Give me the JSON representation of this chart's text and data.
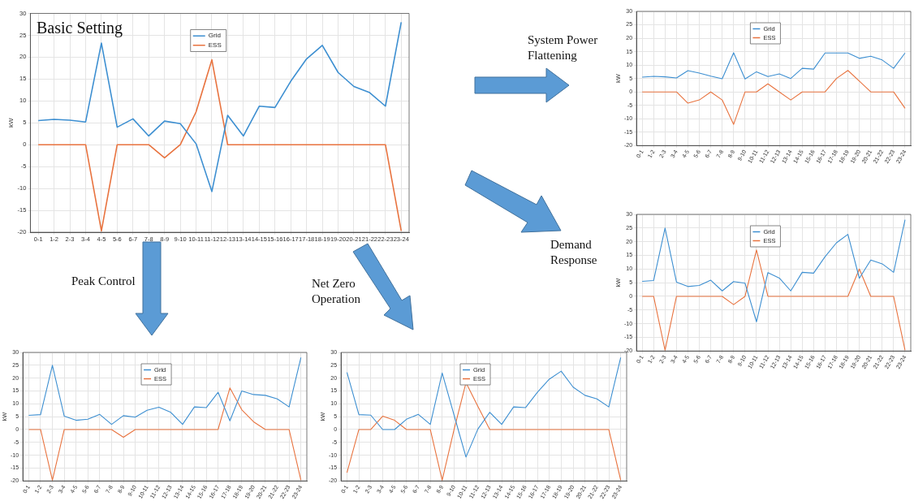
{
  "chart_data": [
    {
      "type": "line",
      "title": "Basic Setting",
      "ylabel": "kW",
      "categories": [
        "0-1",
        "1-2",
        "2-3",
        "3-4",
        "4-5",
        "5-6",
        "6-7",
        "7-8",
        "8-9",
        "9-10",
        "10-11",
        "11-12",
        "12-13",
        "13-14",
        "14-15",
        "15-16",
        "16-17",
        "17-18",
        "18-19",
        "19-20",
        "20-21",
        "21-22",
        "22-23",
        "23-24"
      ],
      "ylim": [
        -20,
        30
      ],
      "yticks": [
        -20,
        -15,
        -10,
        -5,
        0,
        5,
        10,
        15,
        20,
        25,
        30
      ],
      "grid": true,
      "legend": "top",
      "marker": "none",
      "series": [
        {
          "name": "Grid",
          "color": "#3d8fd1",
          "values": [
            5.5,
            5.8,
            5.6,
            5.2,
            23.2,
            4,
            5.9,
            2,
            5.4,
            4.8,
            0.2,
            -10.7,
            6.7,
            2,
            8.8,
            8.5,
            14.5,
            19.6,
            22.7,
            16.5,
            13.3,
            11.9,
            8.8,
            28
          ]
        },
        {
          "name": "ESS",
          "color": "#e8733f",
          "values": [
            0,
            0,
            0,
            0,
            -19.7,
            0,
            0,
            0,
            -3,
            0,
            7.5,
            19.4,
            0,
            0,
            0,
            0,
            0,
            0,
            0,
            0,
            0,
            0,
            0,
            -19.7
          ]
        }
      ]
    },
    {
      "type": "line",
      "title": "System Power Flattening",
      "ylabel": "kW",
      "categories": [
        "0-1",
        "1-2",
        "2-3",
        "3-4",
        "4-5",
        "5-6",
        "6-7",
        "7-8",
        "8-9",
        "9-10",
        "10-11",
        "11-12",
        "12-13",
        "13-14",
        "14-15",
        "15-16",
        "16-17",
        "17-18",
        "18-19",
        "19-20",
        "20-21",
        "21-22",
        "22-23",
        "23-24"
      ],
      "ylim": [
        -20,
        30
      ],
      "yticks": [
        -20,
        -15,
        -10,
        -5,
        0,
        5,
        10,
        15,
        20,
        25,
        30
      ],
      "grid": true,
      "legend": "top",
      "marker": "none",
      "series": [
        {
          "name": "Grid",
          "color": "#3d8fd1",
          "values": [
            5.5,
            5.8,
            5.6,
            5.2,
            7.9,
            7,
            5.9,
            4.9,
            14.6,
            4.8,
            7.5,
            5.7,
            6.7,
            5,
            8.8,
            8.5,
            14.5,
            14.5,
            14.5,
            12.5,
            13.3,
            11.9,
            8.8,
            14.5
          ]
        },
        {
          "name": "ESS",
          "color": "#e8733f",
          "values": [
            0,
            0,
            0,
            0,
            -4.2,
            -3,
            0,
            -3,
            -12.1,
            0,
            0,
            3,
            0,
            -3,
            0,
            0,
            0,
            5,
            8,
            4,
            0,
            0,
            0,
            -6.1
          ]
        }
      ]
    },
    {
      "type": "line",
      "title": "Demand Response",
      "ylabel": "kW",
      "categories": [
        "0-1",
        "1-2",
        "2-3",
        "3-4",
        "4-5",
        "5-6",
        "6-7",
        "7-8",
        "8-9",
        "9-10",
        "10-11",
        "11-12",
        "12-13",
        "13-14",
        "14-15",
        "15-16",
        "16-17",
        "17-18",
        "18-19",
        "19-20",
        "20-21",
        "21-22",
        "22-23",
        "23-24"
      ],
      "ylim": [
        -20,
        30
      ],
      "yticks": [
        -20,
        -15,
        -10,
        -5,
        0,
        5,
        10,
        15,
        20,
        25,
        30
      ],
      "grid": true,
      "legend": "top",
      "marker": "none",
      "series": [
        {
          "name": "Grid",
          "color": "#3d8fd1",
          "values": [
            5.5,
            5.8,
            25,
            5.2,
            3.6,
            4,
            5.9,
            2,
            5.4,
            4.8,
            -9.3,
            8.7,
            6.7,
            2,
            8.8,
            8.5,
            14.5,
            19.6,
            22.7,
            6.6,
            13.3,
            11.9,
            8.8,
            28
          ]
        },
        {
          "name": "ESS",
          "color": "#e8733f",
          "values": [
            0,
            0,
            -19.7,
            0,
            0,
            0,
            0,
            0,
            -3,
            0,
            17,
            0,
            0,
            0,
            0,
            0,
            0,
            0,
            0,
            10,
            0,
            0,
            0,
            -19.7
          ]
        }
      ]
    },
    {
      "type": "line",
      "title": "Peak Control",
      "ylabel": "kW",
      "categories": [
        "0-1",
        "1-2",
        "2-3",
        "3-4",
        "4-5",
        "5-6",
        "6-7",
        "7-8",
        "8-9",
        "9-10",
        "10-11",
        "11-12",
        "12-13",
        "13-14",
        "14-15",
        "15-16",
        "16-17",
        "17-18",
        "18-19",
        "19-20",
        "20-21",
        "21-22",
        "22-23",
        "23-24"
      ],
      "ylim": [
        -20,
        30
      ],
      "yticks": [
        -20,
        -15,
        -10,
        -5,
        0,
        5,
        10,
        15,
        20,
        25,
        30
      ],
      "grid": true,
      "legend": "top",
      "marker": "none",
      "series": [
        {
          "name": "Grid",
          "color": "#3d8fd1",
          "values": [
            5.5,
            5.8,
            25,
            5.2,
            3.6,
            4,
            5.9,
            2,
            5.4,
            4.8,
            7.5,
            8.7,
            6.7,
            2,
            8.8,
            8.5,
            14.5,
            3.4,
            15,
            13.6,
            13.3,
            11.9,
            8.8,
            28
          ]
        },
        {
          "name": "ESS",
          "color": "#e8733f",
          "values": [
            0,
            0,
            -19.7,
            0,
            0,
            0,
            0,
            0,
            -3,
            0,
            0,
            0,
            0,
            0,
            0,
            0,
            0,
            16.2,
            7.7,
            3,
            0,
            0,
            0,
            -19.7
          ]
        }
      ]
    },
    {
      "type": "line",
      "title": "Net Zero Operation",
      "ylabel": "kW",
      "categories": [
        "0-1",
        "1-2",
        "2-3",
        "3-4",
        "4-5",
        "5-6",
        "6-7",
        "7-8",
        "8-9",
        "9-10",
        "10-11",
        "11-12",
        "12-13",
        "13-14",
        "14-15",
        "15-16",
        "16-17",
        "17-18",
        "18-19",
        "19-20",
        "20-21",
        "21-22",
        "22-23",
        "23-24"
      ],
      "ylim": [
        -20,
        30
      ],
      "yticks": [
        -20,
        -15,
        -10,
        -5,
        0,
        5,
        10,
        15,
        20,
        25,
        30
      ],
      "grid": true,
      "legend": "top",
      "marker": "none",
      "series": [
        {
          "name": "Grid",
          "color": "#3d8fd1",
          "values": [
            22.2,
            5.8,
            5.6,
            0,
            0,
            4,
            5.9,
            2,
            22,
            5.6,
            -10.7,
            0.2,
            6.7,
            2,
            8.8,
            8.5,
            14.5,
            19.6,
            22.7,
            16.5,
            13.3,
            11.9,
            8.8,
            28
          ]
        },
        {
          "name": "ESS",
          "color": "#e8733f",
          "values": [
            -16.8,
            0,
            0,
            5.2,
            3.6,
            0,
            0,
            0,
            -19.7,
            0,
            18.2,
            9,
            0,
            0,
            0,
            0,
            0,
            0,
            0,
            0,
            0,
            0,
            0,
            -19.7
          ]
        }
      ]
    }
  ]
}
